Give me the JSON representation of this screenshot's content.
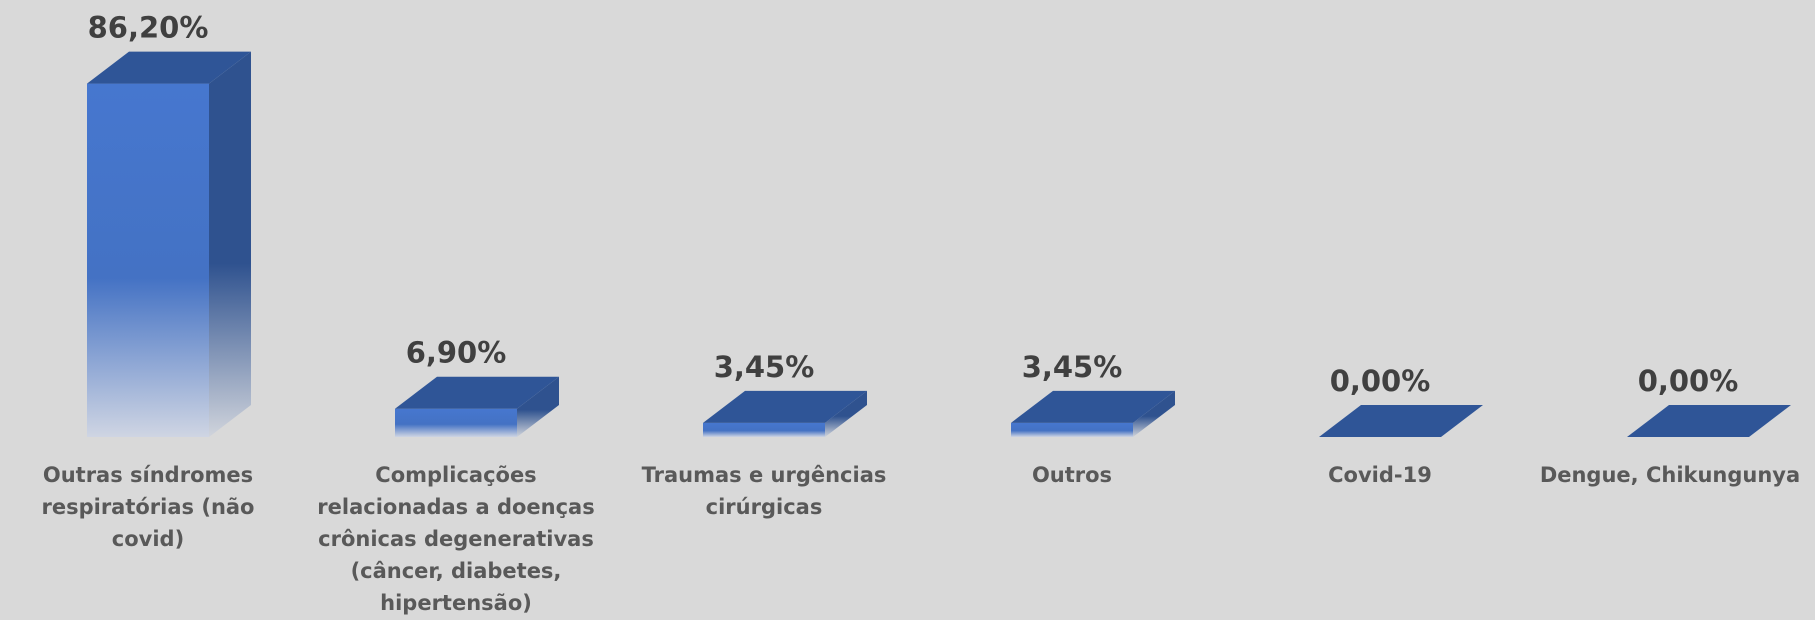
{
  "chart_data": {
    "type": "bar3d",
    "categories": [
      "Outras síndromes respiratórias (não covid)",
      "Complicações relacionadas a doenças crônicas degenerativas (câncer, diabetes, hipertensão)",
      "Traumas e urgências cirúrgicas",
      "Outros",
      "Covid-19",
      "Dengue, Chikungunya"
    ],
    "values": [
      86.2,
      6.9,
      3.45,
      3.45,
      0,
      0
    ],
    "value_labels": [
      "86,20%",
      "6,90%",
      "3,45%",
      "3,45%",
      "0,00%",
      "0,00%"
    ],
    "color": "#4472c4"
  }
}
